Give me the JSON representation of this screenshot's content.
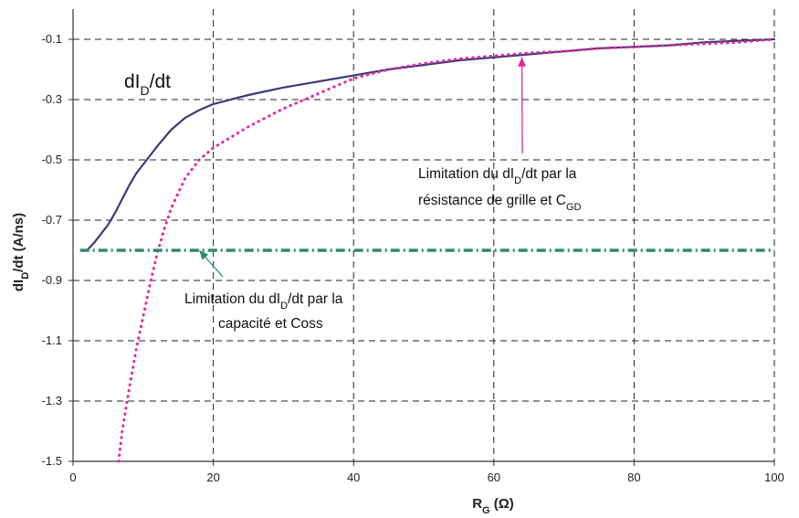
{
  "chart_data": {
    "type": "line",
    "title": "dI_D/dt",
    "xlabel": "R_G (Ω)",
    "ylabel": "dI_D/dt (A/ns)",
    "xlim": [
      0,
      100
    ],
    "ylim": [
      -1.5,
      0
    ],
    "x_ticks": [
      0,
      20,
      40,
      60,
      80,
      100
    ],
    "y_ticks": [
      -0.1,
      -0.3,
      -0.5,
      -0.7,
      -0.9,
      -1.1,
      -1.3,
      -1.5
    ],
    "grid": true,
    "series": [
      {
        "color": "#3b3b78",
        "style": "solid",
        "x": [
          2,
          3,
          4,
          5,
          6,
          7,
          8,
          9,
          10,
          12,
          14,
          16,
          18,
          20,
          25,
          30,
          35,
          40,
          45,
          50,
          55,
          60,
          65,
          70,
          75,
          80,
          85,
          90,
          95,
          100
        ],
        "y": [
          -0.8,
          -0.775,
          -0.745,
          -0.715,
          -0.675,
          -0.63,
          -0.585,
          -0.545,
          -0.515,
          -0.455,
          -0.4,
          -0.36,
          -0.335,
          -0.315,
          -0.285,
          -0.26,
          -0.24,
          -0.22,
          -0.2,
          -0.185,
          -0.17,
          -0.16,
          -0.15,
          -0.14,
          -0.13,
          -0.125,
          -0.12,
          -0.11,
          -0.105,
          -0.1
        ]
      },
      {
        "color": "#e8239b",
        "style": "dotted",
        "x": [
          6.5,
          7,
          8,
          9,
          10,
          11,
          12,
          13,
          14,
          16,
          18,
          20,
          25,
          30,
          35,
          40,
          45,
          50,
          55,
          60,
          65,
          70,
          75,
          80,
          85,
          90,
          95,
          100
        ],
        "y": [
          -1.5,
          -1.4,
          -1.26,
          -1.13,
          -1.02,
          -0.91,
          -0.81,
          -0.73,
          -0.66,
          -0.56,
          -0.5,
          -0.46,
          -0.39,
          -0.33,
          -0.28,
          -0.23,
          -0.2,
          -0.18,
          -0.165,
          -0.155,
          -0.145,
          -0.14,
          -0.13,
          -0.125,
          -0.12,
          -0.115,
          -0.11,
          -0.1
        ]
      },
      {
        "color": "#2e8a6e",
        "style": "dashdot",
        "x": [
          1,
          100
        ],
        "y": [
          -0.8,
          -0.8
        ]
      }
    ],
    "annotations": [
      {
        "id": "gate",
        "line1": "Limitation du dI_D/dt par la",
        "line2": "résistance de grille et C_GD",
        "arrow_color": "#e8239b",
        "target": [
          64,
          -0.16
        ]
      },
      {
        "id": "coss",
        "line1": "Limitation du dI_D/dt par la",
        "line2": "capacité et Coss",
        "arrow_color": "#2e8a6e",
        "target": [
          18,
          -0.8
        ]
      }
    ]
  }
}
